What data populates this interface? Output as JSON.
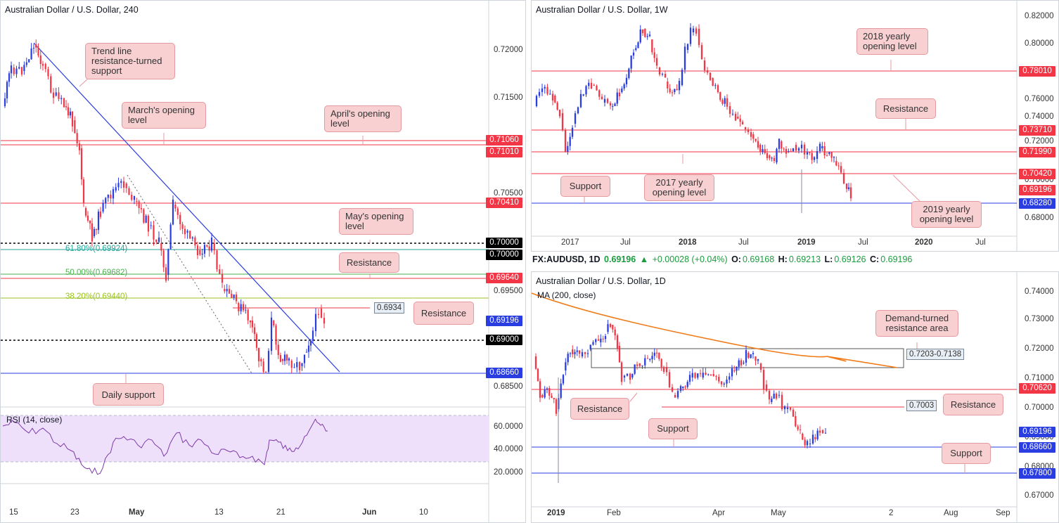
{
  "colors": {
    "support": "#2a3de0",
    "resistance": "#f23645",
    "bull": "#2a3de0",
    "bear": "#f23645",
    "annotation_bg": "#f8d0d2",
    "rsi_bg": "#eee0fb",
    "rsi_line": "#7e3aa8",
    "ma": "#f07b18",
    "fib618": "#26a69a",
    "fib50": "#4caf50",
    "fib382": "#9bc21f"
  },
  "charts": [
    {
      "title": "Australian Dollar / U.S. Dollar, 240",
      "indicator": "RSI (14, close)",
      "price_ticks": [
        "0.72000",
        "0.71500",
        "0.70500",
        "0.69500",
        "0.68500"
      ],
      "rsi_ticks": [
        "60.0000",
        "40.0000",
        "20.0000"
      ],
      "x_ticks": [
        "15",
        "23",
        "May",
        "13",
        "21",
        "Jun",
        "10"
      ],
      "level_tags": [
        {
          "text": "0.71060",
          "kind": "resistance"
        },
        {
          "text": "0.71010",
          "kind": "resistance"
        },
        {
          "text": "0.70410",
          "kind": "resistance"
        },
        {
          "text": "0.70000",
          "kind": "black"
        },
        {
          "text": "0.70000",
          "kind": "black"
        },
        {
          "text": "0.69640",
          "kind": "resistance"
        },
        {
          "text": "0.69196",
          "kind": "price"
        },
        {
          "text": "0.69000",
          "kind": "black"
        },
        {
          "text": "0.68660",
          "kind": "support"
        }
      ],
      "fib_labels": [
        "61.80%(0.69924)",
        "50.00%(0.69682)",
        "38.20%(0.69440)"
      ],
      "price_label": "0.6934",
      "annotations": [
        "Trend line resistance-turned support",
        "March's opening level",
        "April's opening level",
        "May's opening level",
        "Resistance",
        "Resistance",
        "Daily support"
      ]
    },
    {
      "title": "Australian Dollar / U.S. Dollar, 1W",
      "price_ticks": [
        "0.82000",
        "0.80000",
        "0.76000",
        "0.74000",
        "0.72000",
        "0.70000",
        "0.68000"
      ],
      "x_ticks": [
        "2017",
        "Jul",
        "2018",
        "Jul",
        "2019",
        "Jul",
        "2020",
        "Jul"
      ],
      "level_tags": [
        {
          "text": "0.78010",
          "kind": "resistance"
        },
        {
          "text": "0.73710",
          "kind": "resistance"
        },
        {
          "text": "0.71990",
          "kind": "resistance"
        },
        {
          "text": "0.70420",
          "kind": "resistance"
        },
        {
          "text": "0.69196",
          "kind": "resistance"
        },
        {
          "text": "0.68280",
          "kind": "support"
        }
      ],
      "annotations": [
        "2018 yearly opening level",
        "Resistance",
        "Support",
        "2017 yearly opening level",
        "2019 yearly opening level"
      ]
    },
    {
      "title": "Australian Dollar / U.S. Dollar, 1D",
      "indicator": "MA (200, close)",
      "price_ticks": [
        "0.74000",
        "0.73000",
        "0.72000",
        "0.71000",
        "0.70000",
        "0.69000",
        "0.68000",
        "0.67000"
      ],
      "x_ticks": [
        "2019",
        "Feb",
        "Apr",
        "May",
        "2",
        "Aug",
        "Sep"
      ],
      "level_tags": [
        {
          "text": "0.70620",
          "kind": "resistance"
        },
        {
          "text": "0.69196",
          "kind": "price"
        },
        {
          "text": "0.68660",
          "kind": "support"
        },
        {
          "text": "0.67800",
          "kind": "support"
        }
      ],
      "box_label": "0.7203-0.7138",
      "level_label": "0.7003",
      "annotations": [
        "Demand-turned resistance area",
        "Resistance",
        "Resistance",
        "Support",
        "Support"
      ]
    }
  ],
  "infobar": {
    "symbol": "FX:AUDUSD, 1D",
    "last": "0.69196",
    "change": "+0.00028 (+0.04%)",
    "o_label": "O:",
    "o": "0.69168",
    "h_label": "H:",
    "h": "0.69213",
    "l_label": "L:",
    "l": "0.69126",
    "c_label": "C:",
    "c": "0.69196"
  }
}
